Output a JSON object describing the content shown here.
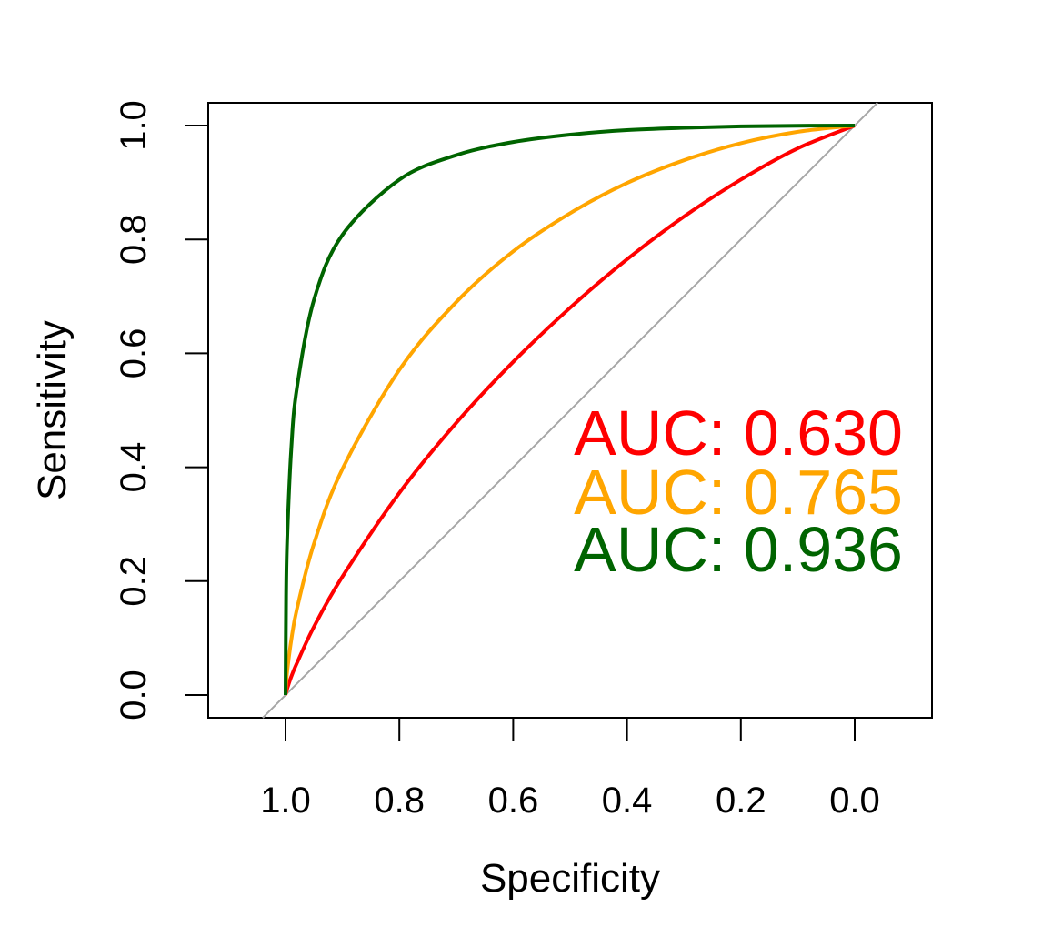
{
  "chart_data": {
    "type": "line",
    "xlabel": "Specificity",
    "ylabel": "Sensitivity",
    "xlim": [
      1.136,
      -0.136
    ],
    "ylim": [
      -0.04,
      1.04
    ],
    "x_reversed": true,
    "grid": false,
    "xticks": [
      "1.0",
      "0.8",
      "0.6",
      "0.4",
      "0.2",
      "0.0"
    ],
    "yticks": [
      "0.0",
      "0.2",
      "0.4",
      "0.6",
      "0.8",
      "1.0"
    ],
    "reference_line": {
      "from": [
        1,
        0
      ],
      "to": [
        0,
        1
      ],
      "color": "#A6A6A6"
    },
    "specificity": [
      1.0,
      0.999,
      0.997,
      0.99,
      0.98,
      0.95,
      0.9,
      0.8,
      0.7,
      0.6,
      0.5,
      0.4,
      0.3,
      0.2,
      0.1,
      0.0
    ],
    "series": [
      {
        "color": "#FF0000",
        "auc_label": "AUC: 0.630",
        "sensitivity": [
          0,
          0.0044,
          0.0113,
          0.032,
          0.056,
          0.12,
          0.208,
          0.355,
          0.478,
          0.585,
          0.68,
          0.765,
          0.84,
          0.905,
          0.96,
          1.0
        ]
      },
      {
        "color": "#FFA500",
        "auc_label": "AUC: 0.765",
        "sensitivity": [
          0,
          0.019,
          0.042,
          0.096,
          0.151,
          0.266,
          0.397,
          0.571,
          0.69,
          0.779,
          0.846,
          0.899,
          0.939,
          0.969,
          0.989,
          1.0
        ]
      },
      {
        "color": "#006400",
        "auc_label": "AUC: 0.936",
        "sensitivity": [
          0,
          0.174,
          0.276,
          0.431,
          0.539,
          0.694,
          0.808,
          0.905,
          0.948,
          0.971,
          0.984,
          0.992,
          0.996,
          0.9986,
          0.9997,
          1.0
        ]
      }
    ]
  }
}
